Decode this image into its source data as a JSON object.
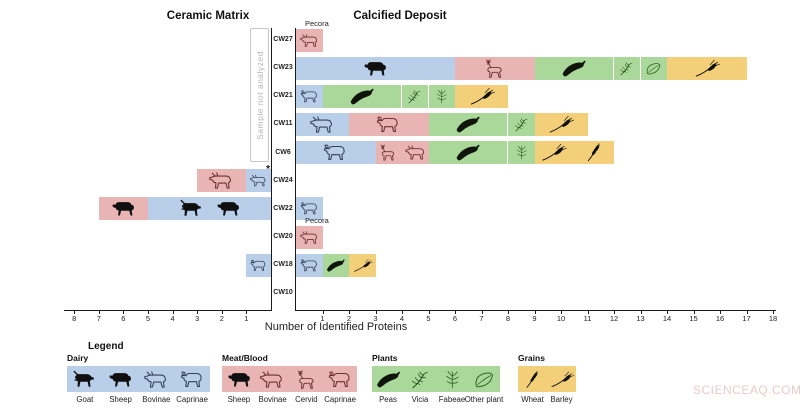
{
  "titles": {
    "left": "Ceramic Matrix",
    "right": "Calcified Deposit"
  },
  "watermark": "SCIENCEAQ.COM",
  "chart_data": {
    "type": "bar",
    "orientation": "horizontal-diverging",
    "xlabel": "Number of Identified Proteins",
    "axis": {
      "left_title": "Ceramic Matrix",
      "right_title": "Calcified Deposit",
      "left_max": 8,
      "right_max": 18,
      "tick_step": 1
    },
    "not_analyzed": {
      "label": "Sample not analyzed",
      "side": "ceramic",
      "applies_to": [
        "CW27",
        "CW23",
        "CW21",
        "CW11",
        "CW6"
      ]
    },
    "categories": [
      "CW27",
      "CW23",
      "CW21",
      "CW11",
      "CW6",
      "CW24",
      "CW22",
      "CW20",
      "CW18",
      "CW10"
    ],
    "colors": {
      "dairy": "#b9cee8",
      "meat": "#e9b4b4",
      "plant": "#a9d89a",
      "grain": "#f4cf79"
    },
    "rows": [
      {
        "sample": "CW27",
        "ceramic": [],
        "calcified": [
          {
            "cat": "meat",
            "value": 1,
            "icons": [
              "bovinae"
            ],
            "label": "Pecora"
          }
        ]
      },
      {
        "sample": "CW23",
        "ceramic": [],
        "calcified": [
          {
            "cat": "dairy",
            "value": 6,
            "icons": [
              "sheep"
            ]
          },
          {
            "cat": "meat",
            "value": 3,
            "icons": [
              "cervid"
            ]
          },
          {
            "cat": "plant",
            "value": 3,
            "icons": [
              "peas"
            ]
          },
          {
            "cat": "plant",
            "value": 1,
            "icons": [
              "vicia"
            ]
          },
          {
            "cat": "plant",
            "value": 1,
            "icons": [
              "other-plant"
            ]
          },
          {
            "cat": "grain",
            "value": 3,
            "icons": [
              "barley"
            ]
          }
        ]
      },
      {
        "sample": "CW21",
        "ceramic": [],
        "calcified": [
          {
            "cat": "dairy",
            "value": 1,
            "icons": [
              "caprinae"
            ]
          },
          {
            "cat": "plant",
            "value": 3,
            "icons": [
              "peas"
            ]
          },
          {
            "cat": "plant",
            "value": 1,
            "icons": [
              "vicia"
            ]
          },
          {
            "cat": "plant",
            "value": 1,
            "icons": [
              "fabeae"
            ]
          },
          {
            "cat": "grain",
            "value": 2,
            "icons": [
              "barley"
            ]
          }
        ]
      },
      {
        "sample": "CW11",
        "ceramic": [],
        "calcified": [
          {
            "cat": "dairy",
            "value": 2,
            "icons": [
              "bovinae"
            ]
          },
          {
            "cat": "meat",
            "value": 3,
            "icons": [
              "caprinae"
            ]
          },
          {
            "cat": "plant",
            "value": 3,
            "icons": [
              "peas"
            ]
          },
          {
            "cat": "plant",
            "value": 1,
            "icons": [
              "vicia"
            ]
          },
          {
            "cat": "grain",
            "value": 2,
            "icons": [
              "barley"
            ]
          }
        ]
      },
      {
        "sample": "CW6",
        "ceramic": [],
        "calcified": [
          {
            "cat": "dairy",
            "value": 3,
            "icons": [
              "caprinae"
            ]
          },
          {
            "cat": "meat",
            "value": 2,
            "icons": [
              "cervid",
              "bovinae"
            ]
          },
          {
            "cat": "plant",
            "value": 3,
            "icons": [
              "peas"
            ]
          },
          {
            "cat": "plant",
            "value": 1,
            "icons": [
              "fabeae"
            ]
          },
          {
            "cat": "grain",
            "value": 3,
            "icons": [
              "barley",
              "wheat"
            ]
          }
        ]
      },
      {
        "sample": "CW24",
        "ceramic": [
          {
            "cat": "dairy",
            "value": 1,
            "icons": [
              "bovinae"
            ],
            "note": "*"
          },
          {
            "cat": "meat",
            "value": 2,
            "icons": [
              "bovinae"
            ]
          }
        ],
        "calcified": []
      },
      {
        "sample": "CW22",
        "ceramic": [
          {
            "cat": "dairy",
            "value": 5,
            "icons": [
              "goat",
              "sheep"
            ]
          },
          {
            "cat": "meat",
            "value": 2,
            "icons": [
              "sheep"
            ]
          }
        ],
        "calcified": [
          {
            "cat": "dairy",
            "value": 1,
            "icons": [
              "caprinae"
            ]
          }
        ]
      },
      {
        "sample": "CW20",
        "ceramic": [],
        "calcified": [
          {
            "cat": "meat",
            "value": 1,
            "icons": [
              "bovinae"
            ],
            "label": "Pecora"
          }
        ]
      },
      {
        "sample": "CW18",
        "ceramic": [
          {
            "cat": "dairy",
            "value": 1,
            "icons": [
              "caprinae"
            ]
          }
        ],
        "calcified": [
          {
            "cat": "dairy",
            "value": 1,
            "icons": [
              "caprinae"
            ]
          },
          {
            "cat": "plant",
            "value": 1,
            "icons": [
              "peas"
            ]
          },
          {
            "cat": "grain",
            "value": 1,
            "icons": [
              "barley"
            ]
          }
        ]
      },
      {
        "sample": "CW10",
        "ceramic": [],
        "calcified": []
      }
    ]
  },
  "legend": {
    "title": "Legend",
    "groups": [
      {
        "name": "Dairy",
        "cat": "dairy",
        "items": [
          {
            "label": "Goat",
            "icon": "goat"
          },
          {
            "label": "Sheep",
            "icon": "sheep"
          },
          {
            "label": "Bovinae",
            "icon": "bovinae"
          },
          {
            "label": "Caprinae",
            "icon": "caprinae"
          }
        ]
      },
      {
        "name": "Meat/Blood",
        "cat": "meat",
        "items": [
          {
            "label": "Sheep",
            "icon": "sheep"
          },
          {
            "label": "Bovinae",
            "icon": "bovinae"
          },
          {
            "label": "Cervid",
            "icon": "cervid"
          },
          {
            "label": "Caprinae",
            "icon": "caprinae"
          }
        ]
      },
      {
        "name": "Plants",
        "cat": "plant",
        "items": [
          {
            "label": "Peas",
            "icon": "peas"
          },
          {
            "label": "Vicia",
            "icon": "vicia"
          },
          {
            "label": "Fabeae",
            "icon": "fabeae"
          },
          {
            "label": "Other plant",
            "icon": "other-plant"
          }
        ]
      },
      {
        "name": "Grains",
        "cat": "grain",
        "items": [
          {
            "label": "Wheat",
            "icon": "wheat"
          },
          {
            "label": "Barley",
            "icon": "barley"
          }
        ]
      }
    ]
  }
}
